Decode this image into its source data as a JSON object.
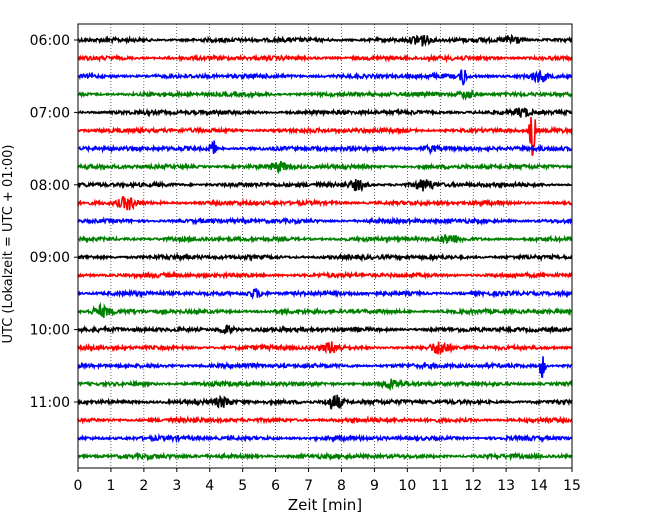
{
  "chart_data": {
    "type": "line",
    "title": "",
    "xlabel": "Zeit  [min]",
    "ylabel": "UTC (Lokalzeit = UTC + 01:00)",
    "xlim": [
      0,
      15
    ],
    "x_ticks": [
      "0",
      "1",
      "2",
      "3",
      "4",
      "5",
      "6",
      "7",
      "8",
      "9",
      "10",
      "11",
      "12",
      "13",
      "14",
      "15"
    ],
    "y_ticks": [
      {
        "label": "06:00",
        "trace": 0
      },
      {
        "label": "07:00",
        "trace": 4
      },
      {
        "label": "08:00",
        "trace": 8
      },
      {
        "label": "09:00",
        "trace": 12
      },
      {
        "label": "10:00",
        "trace": 16
      },
      {
        "label": "11:00",
        "trace": 20
      }
    ],
    "grid": "vertical-dotted",
    "trace_colors": [
      "#000000",
      "#ff0000",
      "#0000ff",
      "#008000"
    ],
    "trace_count": 24,
    "trace_interval_min": 15,
    "traces": [
      {
        "start": "06:00",
        "events": [
          {
            "t": 10.4,
            "amp": 6
          },
          {
            "t": 13.2,
            "amp": 5
          }
        ]
      },
      {
        "start": "06:15",
        "events": []
      },
      {
        "start": "06:30",
        "events": [
          {
            "t": 11.7,
            "amp": 10
          },
          {
            "t": 14.0,
            "amp": 5
          }
        ]
      },
      {
        "start": "06:45",
        "events": [
          {
            "t": 11.8,
            "amp": 4
          }
        ]
      },
      {
        "start": "07:00",
        "events": [
          {
            "t": 13.5,
            "amp": 4
          }
        ]
      },
      {
        "start": "07:15",
        "events": [
          {
            "t": 13.8,
            "amp": 28
          }
        ]
      },
      {
        "start": "07:30",
        "events": [
          {
            "t": 4.1,
            "amp": 9
          },
          {
            "t": 10.7,
            "amp": 3
          }
        ]
      },
      {
        "start": "07:45",
        "events": [
          {
            "t": 6.1,
            "amp": 4
          }
        ]
      },
      {
        "start": "08:00",
        "events": [
          {
            "t": 8.5,
            "amp": 5
          },
          {
            "t": 10.5,
            "amp": 5
          }
        ]
      },
      {
        "start": "08:15",
        "events": [
          {
            "t": 1.5,
            "amp": 6
          }
        ]
      },
      {
        "start": "08:30",
        "events": []
      },
      {
        "start": "08:45",
        "events": [
          {
            "t": 11.3,
            "amp": 4
          }
        ]
      },
      {
        "start": "09:00",
        "events": []
      },
      {
        "start": "09:15",
        "events": []
      },
      {
        "start": "09:30",
        "events": [
          {
            "t": 5.4,
            "amp": 4
          }
        ]
      },
      {
        "start": "09:45",
        "events": [
          {
            "t": 0.7,
            "amp": 5
          }
        ]
      },
      {
        "start": "10:00",
        "events": [
          {
            "t": 4.5,
            "amp": 4
          }
        ]
      },
      {
        "start": "10:15",
        "events": [
          {
            "t": 7.7,
            "amp": 5
          },
          {
            "t": 11.0,
            "amp": 6
          }
        ]
      },
      {
        "start": "10:30",
        "events": [
          {
            "t": 14.1,
            "amp": 13
          }
        ]
      },
      {
        "start": "10:45",
        "events": [
          {
            "t": 9.5,
            "amp": 4
          }
        ]
      },
      {
        "start": "11:00",
        "events": [
          {
            "t": 4.4,
            "amp": 4
          },
          {
            "t": 7.8,
            "amp": 8
          }
        ]
      },
      {
        "start": "11:15",
        "events": []
      },
      {
        "start": "11:30",
        "events": []
      },
      {
        "start": "11:45",
        "events": []
      }
    ]
  }
}
